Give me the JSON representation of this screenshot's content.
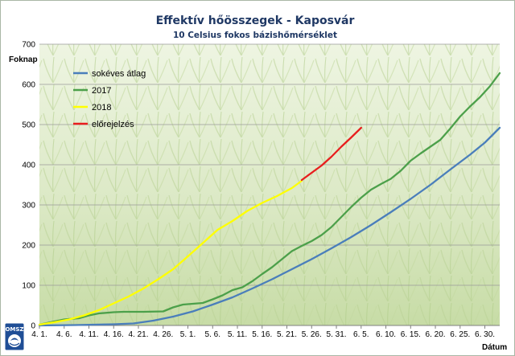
{
  "chart_data": {
    "type": "line",
    "title": "Effektív hőösszegek - Kaposvár",
    "subtitle": "10 Celsius fokos bázishőmérséklet",
    "ylabel": "Foknap",
    "xlabel": "Dátum",
    "ylim": [
      0,
      700
    ],
    "yticks": [
      0,
      100,
      200,
      300,
      400,
      500,
      600,
      700
    ],
    "grid": true,
    "legend_position": "top-left",
    "x_axis": {
      "start_day": 1,
      "end_day": 91
    },
    "xtick_labels": [
      {
        "label": "4. 1.",
        "day": 1
      },
      {
        "label": "4. 6.",
        "day": 6
      },
      {
        "label": "4. 11.",
        "day": 11
      },
      {
        "label": "4. 16.",
        "day": 16
      },
      {
        "label": "4. 21.",
        "day": 21
      },
      {
        "label": "4. 26.",
        "day": 26
      },
      {
        "label": "5. 1.",
        "day": 31
      },
      {
        "label": "5. 6.",
        "day": 36
      },
      {
        "label": "5. 11.",
        "day": 41
      },
      {
        "label": "5. 16.",
        "day": 46
      },
      {
        "label": "5. 21.",
        "day": 51
      },
      {
        "label": "5. 26.",
        "day": 56
      },
      {
        "label": "5. 31.",
        "day": 61
      },
      {
        "label": "6. 5.",
        "day": 66
      },
      {
        "label": "6. 10.",
        "day": 71
      },
      {
        "label": "6. 15.",
        "day": 76
      },
      {
        "label": "6. 20.",
        "day": 81
      },
      {
        "label": "6. 25.",
        "day": 86
      },
      {
        "label": "6. 30.",
        "day": 91
      }
    ],
    "series": [
      {
        "name": "sokéves átlag",
        "color": "#4a7ebb",
        "points": [
          [
            1,
            0
          ],
          [
            8,
            1
          ],
          [
            12,
            2
          ],
          [
            16,
            3
          ],
          [
            20,
            5
          ],
          [
            24,
            12
          ],
          [
            28,
            22
          ],
          [
            32,
            35
          ],
          [
            36,
            52
          ],
          [
            40,
            70
          ],
          [
            44,
            92
          ],
          [
            48,
            115
          ],
          [
            52,
            140
          ],
          [
            56,
            165
          ],
          [
            60,
            192
          ],
          [
            64,
            220
          ],
          [
            68,
            250
          ],
          [
            72,
            282
          ],
          [
            76,
            315
          ],
          [
            80,
            350
          ],
          [
            84,
            388
          ],
          [
            88,
            425
          ],
          [
            91,
            455
          ],
          [
            94,
            492
          ]
        ]
      },
      {
        "name": "2017",
        "color": "#4ca04a",
        "points": [
          [
            1,
            2
          ],
          [
            4,
            10
          ],
          [
            6,
            15
          ],
          [
            9,
            18
          ],
          [
            11,
            25
          ],
          [
            13,
            30
          ],
          [
            16,
            33
          ],
          [
            18,
            34
          ],
          [
            22,
            34
          ],
          [
            26,
            35
          ],
          [
            28,
            45
          ],
          [
            30,
            52
          ],
          [
            32,
            54
          ],
          [
            34,
            56
          ],
          [
            36,
            65
          ],
          [
            38,
            75
          ],
          [
            40,
            88
          ],
          [
            42,
            95
          ],
          [
            44,
            110
          ],
          [
            46,
            128
          ],
          [
            48,
            145
          ],
          [
            50,
            165
          ],
          [
            52,
            185
          ],
          [
            54,
            198
          ],
          [
            56,
            210
          ],
          [
            58,
            225
          ],
          [
            60,
            245
          ],
          [
            62,
            270
          ],
          [
            64,
            295
          ],
          [
            66,
            318
          ],
          [
            68,
            338
          ],
          [
            70,
            352
          ],
          [
            72,
            365
          ],
          [
            74,
            385
          ],
          [
            76,
            410
          ],
          [
            78,
            428
          ],
          [
            80,
            445
          ],
          [
            82,
            462
          ],
          [
            84,
            490
          ],
          [
            86,
            520
          ],
          [
            88,
            545
          ],
          [
            90,
            568
          ],
          [
            92,
            595
          ],
          [
            94,
            628
          ]
        ]
      },
      {
        "name": "2018",
        "color": "#ffff00",
        "points": [
          [
            1,
            2
          ],
          [
            4,
            8
          ],
          [
            7,
            15
          ],
          [
            10,
            25
          ],
          [
            13,
            38
          ],
          [
            16,
            55
          ],
          [
            19,
            72
          ],
          [
            22,
            92
          ],
          [
            25,
            115
          ],
          [
            28,
            140
          ],
          [
            31,
            172
          ],
          [
            34,
            205
          ],
          [
            37,
            238
          ],
          [
            40,
            260
          ],
          [
            43,
            285
          ],
          [
            46,
            305
          ],
          [
            49,
            322
          ],
          [
            52,
            342
          ],
          [
            54,
            360
          ]
        ]
      },
      {
        "name": "előrejelzés",
        "color": "#e81e1e",
        "points": [
          [
            54,
            362
          ],
          [
            56,
            380
          ],
          [
            58,
            398
          ],
          [
            60,
            420
          ],
          [
            62,
            445
          ],
          [
            64,
            468
          ],
          [
            66,
            492
          ]
        ]
      }
    ]
  },
  "logo": {
    "text": "OMSZ"
  }
}
